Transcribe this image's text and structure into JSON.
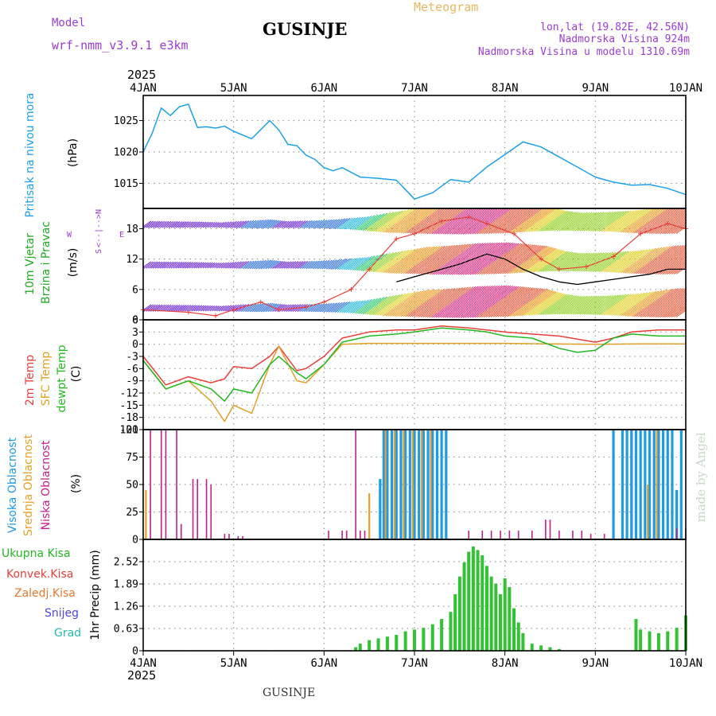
{
  "header": {
    "model_label": "Model",
    "model_name": "wrf-nmm_v3.9.1 e3km",
    "title": "GUSINJE",
    "meteogram": "Meteogram",
    "lonlat": "lon,lat (19.82E, 42.56N)",
    "altitude": "Nadmorska Visina 924m",
    "model_altitude": "Nadmorska Visina u modelu 1310.69m"
  },
  "footer": {
    "station": "GUSINJE",
    "watermark": "made by Angel"
  },
  "colors": {
    "pressure": "#1ea0e8",
    "temp": "#e8403a",
    "sfc": "#e0a028",
    "dew": "#22b822",
    "cloud_high": "#1e9be6",
    "cloud_mid": "#e8a028",
    "cloud_low": "#c0208c",
    "precip": "#33c233",
    "wind_label": "#22aa22",
    "legend_purple": "#9c3cd4"
  },
  "chart_data": [
    {
      "panel": "pressure",
      "type": "line",
      "ylabel": [
        "Pritisak na nivou mora",
        "(hPa)"
      ],
      "year_label": "2025",
      "xticks": [
        "4JAN",
        "5JAN",
        "6JAN",
        "7JAN",
        "8JAN",
        "9JAN",
        "10JAN"
      ],
      "ylim": [
        1011,
        1029
      ],
      "yticks": [
        "1015",
        "1020",
        "1025"
      ],
      "ytick_values": [
        1015,
        1020,
        1025
      ],
      "x_days": [
        0,
        0.1,
        0.2,
        0.3,
        0.4,
        0.5,
        0.6,
        0.7,
        0.8,
        0.9,
        1.0,
        1.2,
        1.4,
        1.5,
        1.6,
        1.7,
        1.8,
        1.9,
        2.0,
        2.1,
        2.2,
        2.4,
        2.6,
        2.8,
        3.0,
        3.2,
        3.4,
        3.6,
        3.8,
        4.0,
        4.2,
        4.4,
        4.6,
        4.8,
        5.0,
        5.2,
        5.4,
        5.6,
        5.8,
        6.0
      ],
      "values": [
        1020.0,
        1023.0,
        1027.0,
        1025.8,
        1027.2,
        1027.6,
        1023.9,
        1024.0,
        1023.8,
        1024.1,
        1023.3,
        1022.1,
        1025.0,
        1023.5,
        1021.2,
        1021.0,
        1019.5,
        1018.8,
        1017.5,
        1017.0,
        1017.5,
        1016.0,
        1015.8,
        1015.5,
        1012.5,
        1013.5,
        1015.6,
        1015.2,
        1017.6,
        1019.6,
        1021.6,
        1020.8,
        1019.2,
        1017.6,
        1016.0,
        1015.2,
        1014.7,
        1014.8,
        1014.2,
        1013.2
      ]
    },
    {
      "panel": "wind",
      "type": "line",
      "ylabel": [
        "10m Vjetar",
        "Brzina i Pravac",
        "(m/s)"
      ],
      "compass": [
        "N",
        "<--|-->",
        "W",
        "E",
        "S"
      ],
      "ylim": [
        0,
        22
      ],
      "yticks": [
        "0",
        "6",
        "12",
        "18"
      ],
      "ytick_values": [
        0,
        6,
        12,
        18
      ],
      "series": [
        {
          "name": "speed",
          "x_days": [
            0,
            0.5,
            0.8,
            1.0,
            1.3,
            1.5,
            1.8,
            2.0,
            2.3,
            2.5,
            2.8,
            3.0,
            3.3,
            3.6,
            3.8,
            4.1,
            4.4,
            4.6,
            4.9,
            5.2,
            5.5,
            5.8,
            6.0
          ],
          "values": [
            2.0,
            1.5,
            0.8,
            2.0,
            3.5,
            2.0,
            2.5,
            3.5,
            6.0,
            10.0,
            16.0,
            17.0,
            19.5,
            20.3,
            19.0,
            17.0,
            12.0,
            10.0,
            10.5,
            12.5,
            17.0,
            19.0,
            18.0
          ]
        },
        {
          "name": "gust",
          "x_days": [
            2.8,
            3.0,
            3.3,
            3.5,
            3.8,
            4.0,
            4.2,
            4.4,
            4.6,
            4.8,
            5.0,
            5.2,
            5.4,
            5.6,
            5.8,
            6.0
          ],
          "values": [
            7.5,
            8.5,
            10.0,
            11.0,
            13.0,
            12.0,
            10.0,
            8.5,
            7.5,
            7.0,
            7.5,
            8.0,
            8.5,
            9.0,
            10.0,
            10.0
          ]
        }
      ]
    },
    {
      "panel": "temperature",
      "type": "line",
      "ylabel": [
        "2m Temp",
        "SFC Temp",
        "dewpt Temp",
        "(C)"
      ],
      "ylim": [
        -21,
        6
      ],
      "yticks": [
        "-21",
        "-18",
        "-15",
        "-12",
        "-9",
        "-6",
        "-3",
        "0",
        "3",
        "6"
      ],
      "ytick_values": [
        -21,
        -18,
        -15,
        -12,
        -9,
        -6,
        -3,
        0,
        3,
        6
      ],
      "series": [
        {
          "name": "2m Temp",
          "x_days": [
            0,
            0.25,
            0.5,
            0.75,
            0.9,
            1.0,
            1.2,
            1.4,
            1.5,
            1.7,
            1.8,
            2.0,
            2.2,
            2.5,
            2.8,
            3.0,
            3.3,
            3.6,
            3.8,
            4.0,
            4.3,
            4.6,
            5.0,
            5.2,
            5.4,
            5.7,
            6.0
          ],
          "values": [
            -3.0,
            -10.0,
            -8.0,
            -9.5,
            -8.5,
            -5.5,
            -6.0,
            -3.0,
            -0.5,
            -6.5,
            -6.0,
            -3.0,
            1.5,
            3.0,
            3.5,
            3.5,
            4.5,
            4.0,
            3.5,
            3.0,
            2.5,
            2.0,
            0.5,
            1.5,
            3.0,
            3.5,
            3.5
          ]
        },
        {
          "name": "SFC Temp",
          "x_days": [
            0,
            0.25,
            0.5,
            0.75,
            0.9,
            1.0,
            1.2,
            1.4,
            1.5,
            1.7,
            1.8,
            2.0,
            2.2,
            2.5,
            3.0,
            3.5,
            4.0,
            4.5,
            5.0,
            5.5,
            6.0
          ],
          "values": [
            -4.0,
            -11.0,
            -9.0,
            -14.0,
            -19.0,
            -15.0,
            -17.0,
            -5.0,
            -0.5,
            -9.0,
            -9.5,
            -5.0,
            0.0,
            0.2,
            0.2,
            0.2,
            0.2,
            0.1,
            0.0,
            0.1,
            0.1
          ]
        },
        {
          "name": "dewpt Temp",
          "x_days": [
            0,
            0.25,
            0.5,
            0.75,
            0.9,
            1.0,
            1.2,
            1.4,
            1.5,
            1.7,
            1.8,
            2.0,
            2.2,
            2.5,
            2.8,
            3.0,
            3.3,
            3.6,
            3.8,
            4.0,
            4.3,
            4.6,
            4.8,
            5.0,
            5.2,
            5.4,
            5.7,
            6.0
          ],
          "values": [
            -4.0,
            -11.0,
            -9.0,
            -11.0,
            -14.0,
            -11.0,
            -12.0,
            -5.0,
            -3.0,
            -7.0,
            -8.5,
            -5.0,
            0.5,
            2.0,
            2.5,
            3.0,
            4.0,
            3.5,
            3.0,
            2.0,
            1.5,
            -1.0,
            -2.0,
            -1.5,
            1.5,
            2.5,
            2.0,
            2.0
          ]
        }
      ]
    },
    {
      "panel": "clouds",
      "type": "bar",
      "ylabel": [
        "Visoka Oblacnost",
        "Srednja Oblacnost",
        "Niska Oblacnost",
        "(%)"
      ],
      "ylim": [
        0,
        100
      ],
      "yticks": [
        "0",
        "25",
        "50",
        "75",
        "100"
      ],
      "ytick_values": [
        0,
        25,
        50,
        75,
        100
      ],
      "series": [
        {
          "name": "Visoka Oblacnost",
          "x_days": [
            2.62,
            2.66,
            2.7,
            2.75,
            2.8,
            2.85,
            2.9,
            2.95,
            3.0,
            3.05,
            3.1,
            3.15,
            3.2,
            3.25,
            3.3,
            3.35,
            5.2,
            5.3,
            5.35,
            5.4,
            5.45,
            5.5,
            5.55,
            5.6,
            5.65,
            5.7,
            5.75,
            5.8,
            5.85,
            5.9,
            5.95
          ],
          "values": [
            55,
            100,
            100,
            100,
            100,
            100,
            100,
            100,
            100,
            100,
            100,
            100,
            100,
            100,
            100,
            100,
            100,
            100,
            100,
            100,
            100,
            100,
            100,
            100,
            100,
            100,
            100,
            100,
            100,
            45,
            100
          ]
        },
        {
          "name": "Srednja Oblacnost",
          "x_days": [
            0.03,
            2.5,
            2.68,
            2.78,
            2.88,
            2.98,
            3.08,
            3.18,
            5.58,
            5.68
          ],
          "values": [
            45,
            42,
            100,
            100,
            100,
            100,
            100,
            100,
            50,
            100
          ]
        },
        {
          "name": "Niska Oblacnost",
          "x_days": [
            0.08,
            0.2,
            0.25,
            0.37,
            0.42,
            0.55,
            0.6,
            0.7,
            0.75,
            0.9,
            0.95,
            1.05,
            1.1,
            2.05,
            2.2,
            2.25,
            2.35,
            2.4,
            2.45,
            3.6,
            3.75,
            3.85,
            3.95,
            4.05,
            4.15,
            4.3,
            4.45,
            4.5,
            4.6,
            4.75,
            4.85,
            4.95,
            5.1,
            5.9,
            6.0
          ],
          "values": [
            100,
            100,
            100,
            100,
            14,
            55,
            55,
            55,
            50,
            5,
            5,
            3,
            3,
            8,
            8,
            8,
            100,
            8,
            8,
            8,
            8,
            8,
            8,
            8,
            8,
            8,
            18,
            18,
            8,
            8,
            8,
            5,
            5,
            10,
            10
          ]
        }
      ]
    },
    {
      "panel": "precip",
      "type": "bar",
      "ylabel": [
        "1hr Precip (mm)"
      ],
      "legend": [
        "Ukupna Kisa",
        "Konvek.Kisa",
        "Zaledj.Kisa",
        "Snijeg",
        "Grad"
      ],
      "legend_colors": [
        "#22b822",
        "#e8403a",
        "#e87830",
        "#4848e0",
        "#28b8b0"
      ],
      "xticks": [
        "4JAN",
        "5JAN",
        "6JAN",
        "7JAN",
        "8JAN",
        "9JAN",
        "10JAN"
      ],
      "year_label": "2025",
      "ylim": [
        0,
        3.15
      ],
      "yticks": [
        "0",
        "0.63",
        "1.26",
        "1.89",
        "2.52"
      ],
      "ytick_values": [
        0,
        0.63,
        1.26,
        1.89,
        2.52
      ],
      "x_days": [
        2.35,
        2.4,
        2.5,
        2.6,
        2.7,
        2.8,
        2.9,
        3.0,
        3.1,
        3.2,
        3.3,
        3.4,
        3.45,
        3.5,
        3.55,
        3.6,
        3.65,
        3.7,
        3.75,
        3.8,
        3.85,
        3.9,
        3.95,
        4.0,
        4.05,
        4.1,
        4.15,
        4.2,
        4.3,
        4.4,
        4.5,
        4.6,
        5.45,
        5.5,
        5.6,
        5.7,
        5.8,
        5.9,
        6.0
      ],
      "values": [
        0.1,
        0.2,
        0.3,
        0.35,
        0.4,
        0.45,
        0.55,
        0.6,
        0.65,
        0.75,
        0.9,
        1.1,
        1.6,
        2.1,
        2.5,
        2.8,
        2.95,
        2.85,
        2.7,
        2.4,
        2.1,
        1.9,
        1.6,
        2.05,
        1.8,
        1.2,
        0.8,
        0.5,
        0.2,
        0.15,
        0.1,
        0.05,
        0.9,
        0.6,
        0.55,
        0.5,
        0.55,
        0.65,
        1.0
      ]
    }
  ]
}
